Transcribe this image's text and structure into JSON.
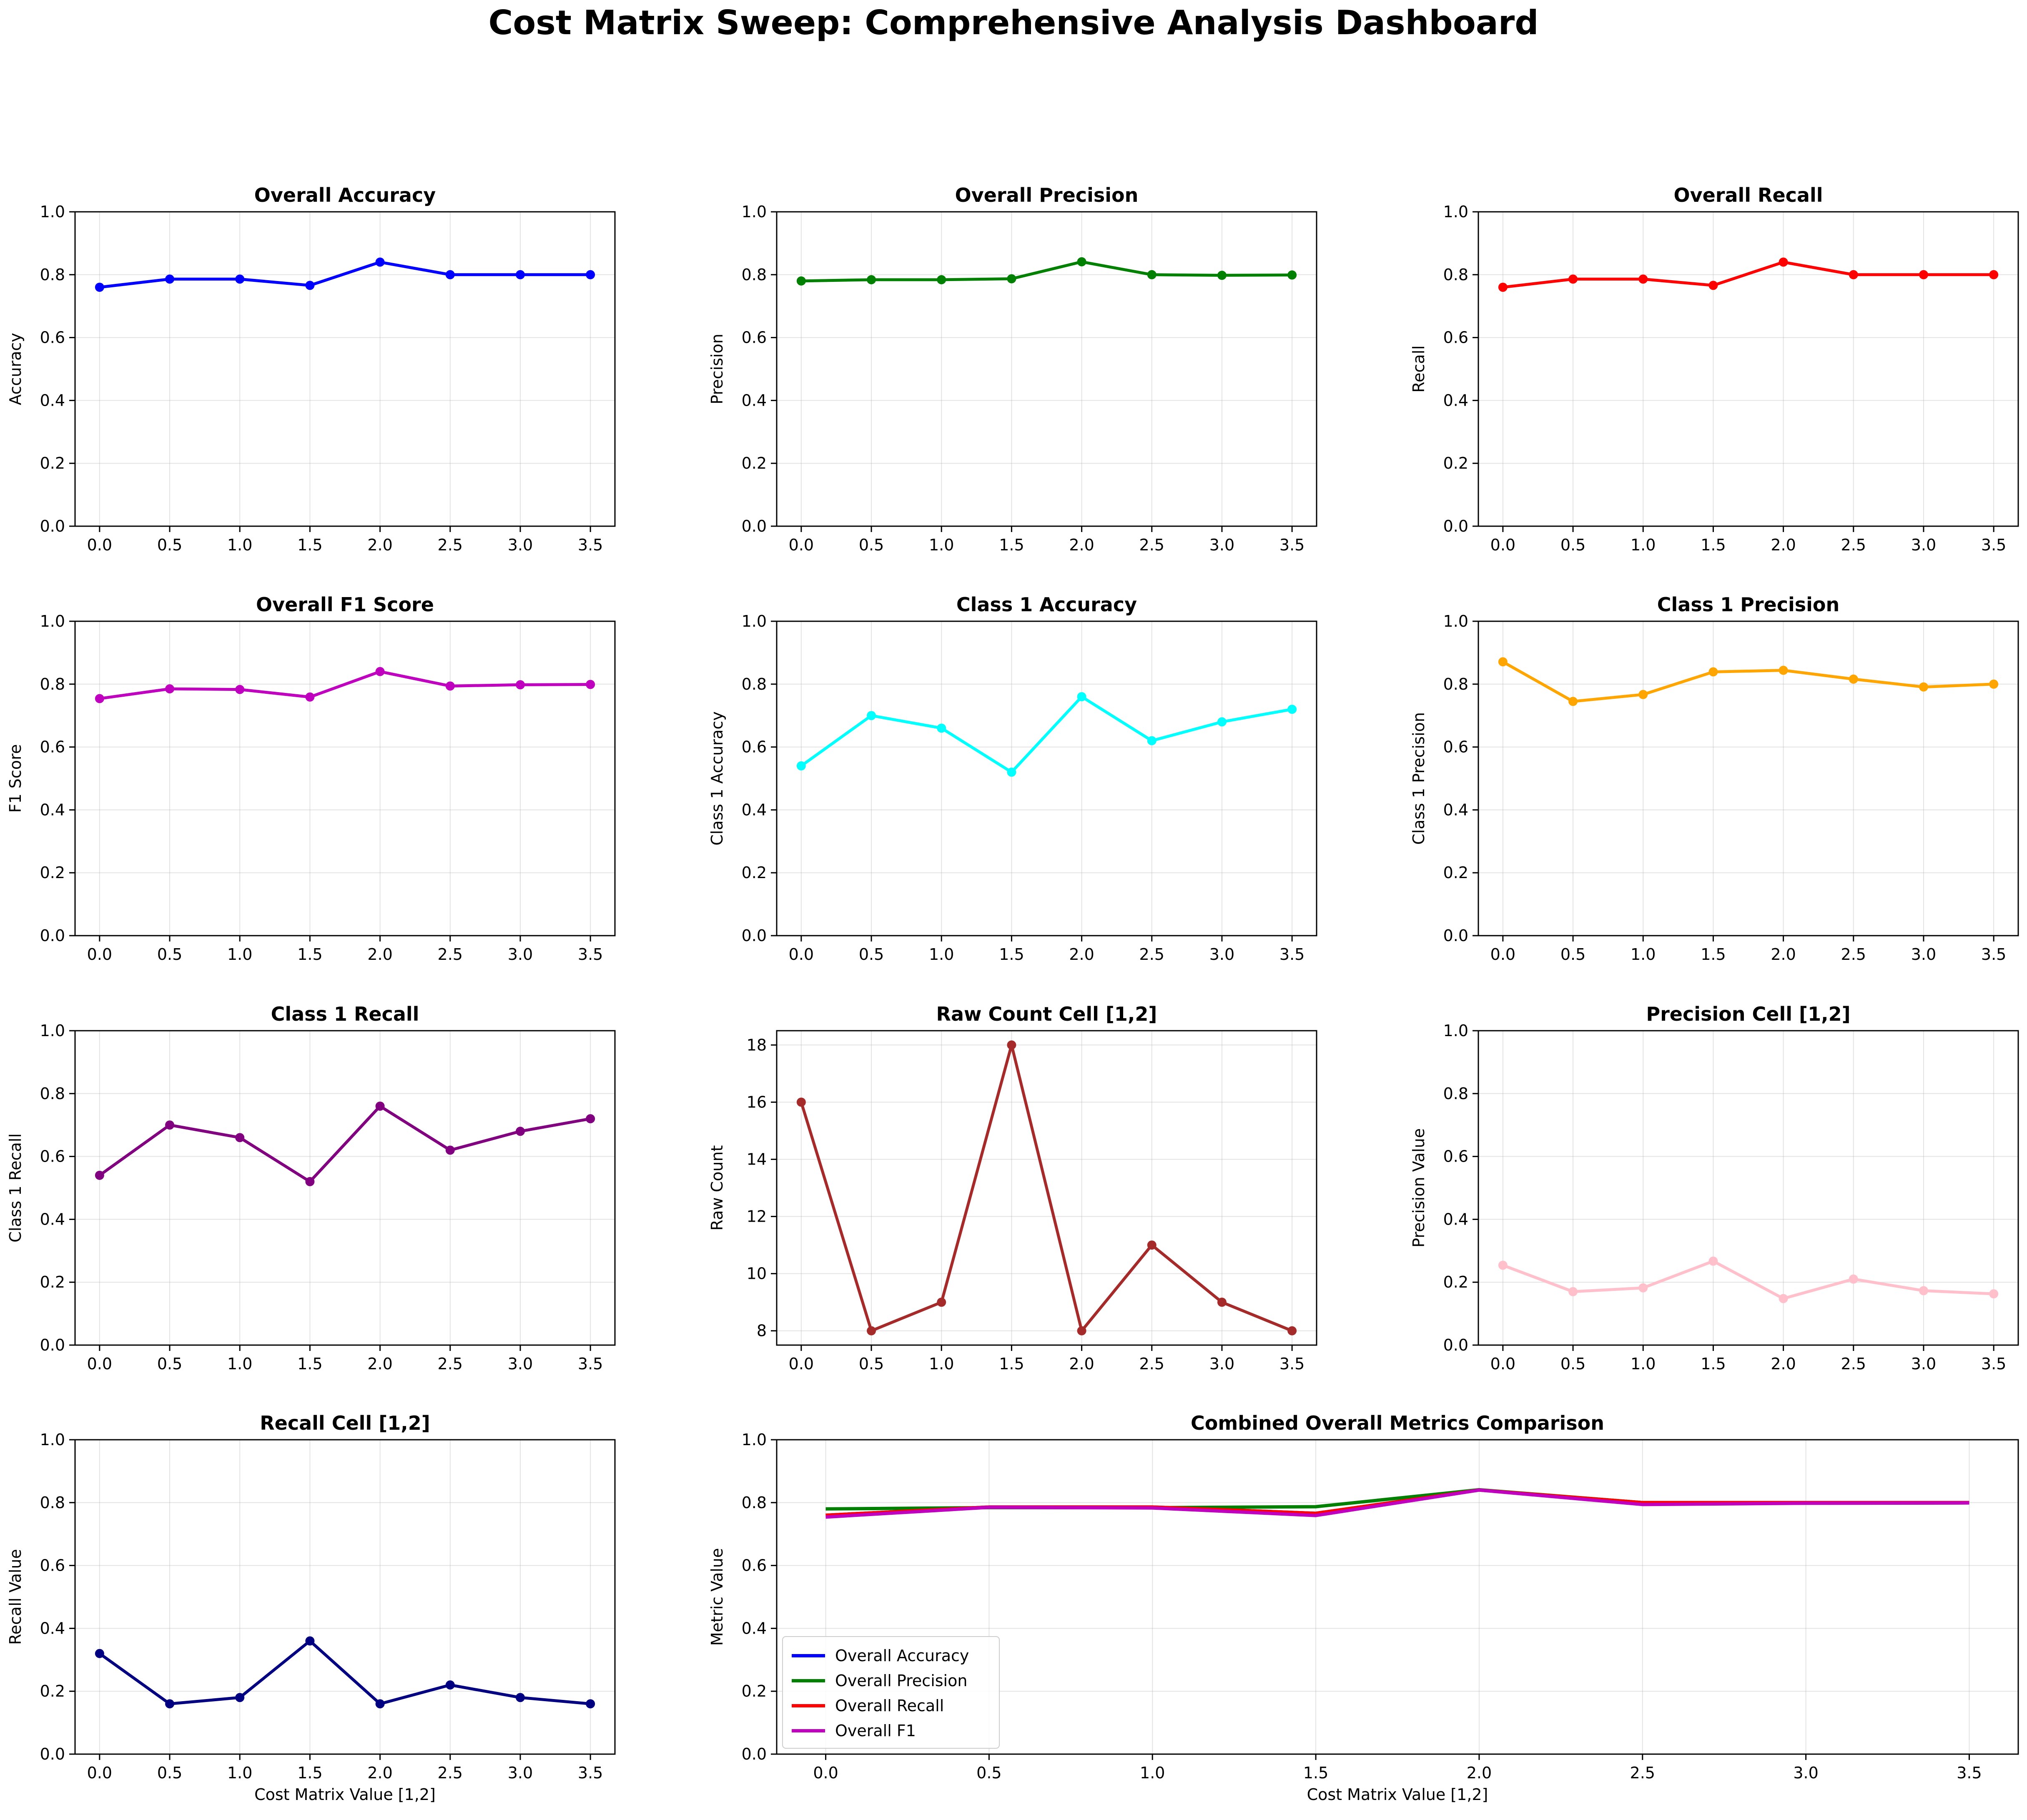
{
  "title": "Cost Matrix Sweep: Comprehensive Analysis Dashboard",
  "chart_data": [
    {
      "id": "acc",
      "type": "line",
      "title": "Overall Accuracy",
      "xlabel": "",
      "ylabel": "Accuracy",
      "color": "#0000ff",
      "x": [
        0.0,
        0.5,
        1.0,
        1.5,
        2.0,
        2.5,
        3.0,
        3.5
      ],
      "xticks": [
        "0.0",
        "0.5",
        "1.0",
        "1.5",
        "2.0",
        "2.5",
        "3.0",
        "3.5"
      ],
      "values": [
        0.76,
        0.786,
        0.786,
        0.766,
        0.84,
        0.8,
        0.8,
        0.8
      ],
      "ylim": [
        0,
        1
      ],
      "yticks": [
        "0.0",
        "0.2",
        "0.4",
        "0.6",
        "0.8",
        "1.0"
      ],
      "grid": true,
      "markers": true
    },
    {
      "id": "prec",
      "type": "line",
      "title": "Overall Precision",
      "xlabel": "",
      "ylabel": "Precision",
      "color": "#008000",
      "x": [
        0.0,
        0.5,
        1.0,
        1.5,
        2.0,
        2.5,
        3.0,
        3.5
      ],
      "xticks": [
        "0.0",
        "0.5",
        "1.0",
        "1.5",
        "2.0",
        "2.5",
        "3.0",
        "3.5"
      ],
      "values": [
        0.78,
        0.784,
        0.784,
        0.787,
        0.841,
        0.8,
        0.798,
        0.799
      ],
      "ylim": [
        0,
        1
      ],
      "yticks": [
        "0.0",
        "0.2",
        "0.4",
        "0.6",
        "0.8",
        "1.0"
      ],
      "grid": true,
      "markers": true
    },
    {
      "id": "rec",
      "type": "line",
      "title": "Overall Recall",
      "xlabel": "",
      "ylabel": "Recall",
      "color": "#ff0000",
      "x": [
        0.0,
        0.5,
        1.0,
        1.5,
        2.0,
        2.5,
        3.0,
        3.5
      ],
      "xticks": [
        "0.0",
        "0.5",
        "1.0",
        "1.5",
        "2.0",
        "2.5",
        "3.0",
        "3.5"
      ],
      "values": [
        0.76,
        0.786,
        0.786,
        0.766,
        0.84,
        0.8,
        0.8,
        0.8
      ],
      "ylim": [
        0,
        1
      ],
      "yticks": [
        "0.0",
        "0.2",
        "0.4",
        "0.6",
        "0.8",
        "1.0"
      ],
      "grid": true,
      "markers": true
    },
    {
      "id": "f1",
      "type": "line",
      "title": "Overall F1 Score",
      "xlabel": "",
      "ylabel": "F1 Score",
      "color": "#bf00bf",
      "x": [
        0.0,
        0.5,
        1.0,
        1.5,
        2.0,
        2.5,
        3.0,
        3.5
      ],
      "xticks": [
        "0.0",
        "0.5",
        "1.0",
        "1.5",
        "2.0",
        "2.5",
        "3.0",
        "3.5"
      ],
      "values": [
        0.754,
        0.785,
        0.783,
        0.759,
        0.84,
        0.794,
        0.798,
        0.799
      ],
      "ylim": [
        0,
        1
      ],
      "yticks": [
        "0.0",
        "0.2",
        "0.4",
        "0.6",
        "0.8",
        "1.0"
      ],
      "grid": true,
      "markers": true
    },
    {
      "id": "c1acc",
      "type": "line",
      "title": "Class 1 Accuracy",
      "xlabel": "",
      "ylabel": "Class 1 Accuracy",
      "color": "#00ffff",
      "x": [
        0.0,
        0.5,
        1.0,
        1.5,
        2.0,
        2.5,
        3.0,
        3.5
      ],
      "xticks": [
        "0.0",
        "0.5",
        "1.0",
        "1.5",
        "2.0",
        "2.5",
        "3.0",
        "3.5"
      ],
      "values": [
        0.54,
        0.7,
        0.66,
        0.52,
        0.76,
        0.62,
        0.68,
        0.72
      ],
      "ylim": [
        0,
        1
      ],
      "yticks": [
        "0.0",
        "0.2",
        "0.4",
        "0.6",
        "0.8",
        "1.0"
      ],
      "grid": true,
      "markers": true
    },
    {
      "id": "c1prec",
      "type": "line",
      "title": "Class 1 Precision",
      "xlabel": "",
      "ylabel": "Class 1 Precision",
      "color": "#ffa500",
      "x": [
        0.0,
        0.5,
        1.0,
        1.5,
        2.0,
        2.5,
        3.0,
        3.5
      ],
      "xticks": [
        "0.0",
        "0.5",
        "1.0",
        "1.5",
        "2.0",
        "2.5",
        "3.0",
        "3.5"
      ],
      "values": [
        0.871,
        0.745,
        0.767,
        0.839,
        0.844,
        0.816,
        0.791,
        0.8
      ],
      "ylim": [
        0,
        1
      ],
      "yticks": [
        "0.0",
        "0.2",
        "0.4",
        "0.6",
        "0.8",
        "1.0"
      ],
      "grid": true,
      "markers": true
    },
    {
      "id": "c1rec",
      "type": "line",
      "title": "Class 1 Recall",
      "xlabel": "",
      "ylabel": "Class 1 Recall",
      "color": "#800080",
      "x": [
        0.0,
        0.5,
        1.0,
        1.5,
        2.0,
        2.5,
        3.0,
        3.5
      ],
      "xticks": [
        "0.0",
        "0.5",
        "1.0",
        "1.5",
        "2.0",
        "2.5",
        "3.0",
        "3.5"
      ],
      "values": [
        0.54,
        0.7,
        0.66,
        0.52,
        0.76,
        0.62,
        0.68,
        0.72
      ],
      "ylim": [
        0,
        1
      ],
      "yticks": [
        "0.0",
        "0.2",
        "0.4",
        "0.6",
        "0.8",
        "1.0"
      ],
      "grid": true,
      "markers": true
    },
    {
      "id": "raw",
      "type": "line",
      "title": "Raw Count Cell [1,2]",
      "xlabel": "",
      "ylabel": "Raw Count",
      "color": "#a52a2a",
      "x": [
        0.0,
        0.5,
        1.0,
        1.5,
        2.0,
        2.5,
        3.0,
        3.5
      ],
      "xticks": [
        "0.0",
        "0.5",
        "1.0",
        "1.5",
        "2.0",
        "2.5",
        "3.0",
        "3.5"
      ],
      "values": [
        16,
        8,
        9,
        18,
        8,
        11,
        9,
        8
      ],
      "ylim": [
        7.5,
        18.5
      ],
      "ytickvals": [
        8,
        10,
        12,
        14,
        16,
        18
      ],
      "yticks": [
        "8",
        "10",
        "12",
        "14",
        "16",
        "18"
      ],
      "grid": true,
      "markers": true
    },
    {
      "id": "pcell",
      "type": "line",
      "title": "Precision Cell [1,2]",
      "xlabel": "",
      "ylabel": "Precision Value",
      "color": "#ffc0cb",
      "x": [
        0.0,
        0.5,
        1.0,
        1.5,
        2.0,
        2.5,
        3.0,
        3.5
      ],
      "xticks": [
        "0.0",
        "0.5",
        "1.0",
        "1.5",
        "2.0",
        "2.5",
        "3.0",
        "3.5"
      ],
      "values": [
        0.254,
        0.17,
        0.182,
        0.267,
        0.148,
        0.21,
        0.173,
        0.163
      ],
      "ylim": [
        0,
        1
      ],
      "yticks": [
        "0.0",
        "0.2",
        "0.4",
        "0.6",
        "0.8",
        "1.0"
      ],
      "grid": true,
      "markers": true
    },
    {
      "id": "rcell",
      "type": "line",
      "title": "Recall Cell [1,2]",
      "xlabel": "Cost Matrix Value [1,2]",
      "ylabel": "Recall Value",
      "color": "#000080",
      "x": [
        0.0,
        0.5,
        1.0,
        1.5,
        2.0,
        2.5,
        3.0,
        3.5
      ],
      "xticks": [
        "0.0",
        "0.5",
        "1.0",
        "1.5",
        "2.0",
        "2.5",
        "3.0",
        "3.5"
      ],
      "values": [
        0.32,
        0.16,
        0.18,
        0.36,
        0.16,
        0.22,
        0.18,
        0.16
      ],
      "ylim": [
        0,
        1
      ],
      "yticks": [
        "0.0",
        "0.2",
        "0.4",
        "0.6",
        "0.8",
        "1.0"
      ],
      "grid": true,
      "markers": true
    },
    {
      "id": "combined",
      "type": "line",
      "title": "Combined Overall Metrics Comparison",
      "xlabel": "Cost Matrix Value [1,2]",
      "ylabel": "Metric Value",
      "x": [
        0.0,
        0.5,
        1.0,
        1.5,
        2.0,
        2.5,
        3.0,
        3.5
      ],
      "xticks": [
        "0.0",
        "0.5",
        "1.0",
        "1.5",
        "2.0",
        "2.5",
        "3.0",
        "3.5"
      ],
      "ylim": [
        0,
        1
      ],
      "yticks": [
        "0.0",
        "0.2",
        "0.4",
        "0.6",
        "0.8",
        "1.0"
      ],
      "grid": true,
      "markers": false,
      "legend": "lower-left",
      "series": [
        {
          "name": "Overall Accuracy",
          "color": "#0000ff",
          "values": [
            0.76,
            0.786,
            0.786,
            0.766,
            0.84,
            0.8,
            0.8,
            0.8
          ]
        },
        {
          "name": "Overall Precision",
          "color": "#008000",
          "values": [
            0.78,
            0.784,
            0.784,
            0.787,
            0.841,
            0.8,
            0.798,
            0.799
          ]
        },
        {
          "name": "Overall Recall",
          "color": "#ff0000",
          "values": [
            0.76,
            0.786,
            0.786,
            0.766,
            0.84,
            0.8,
            0.8,
            0.8
          ]
        },
        {
          "name": "Overall F1",
          "color": "#bf00bf",
          "values": [
            0.754,
            0.785,
            0.783,
            0.759,
            0.84,
            0.794,
            0.798,
            0.799
          ]
        }
      ]
    }
  ]
}
